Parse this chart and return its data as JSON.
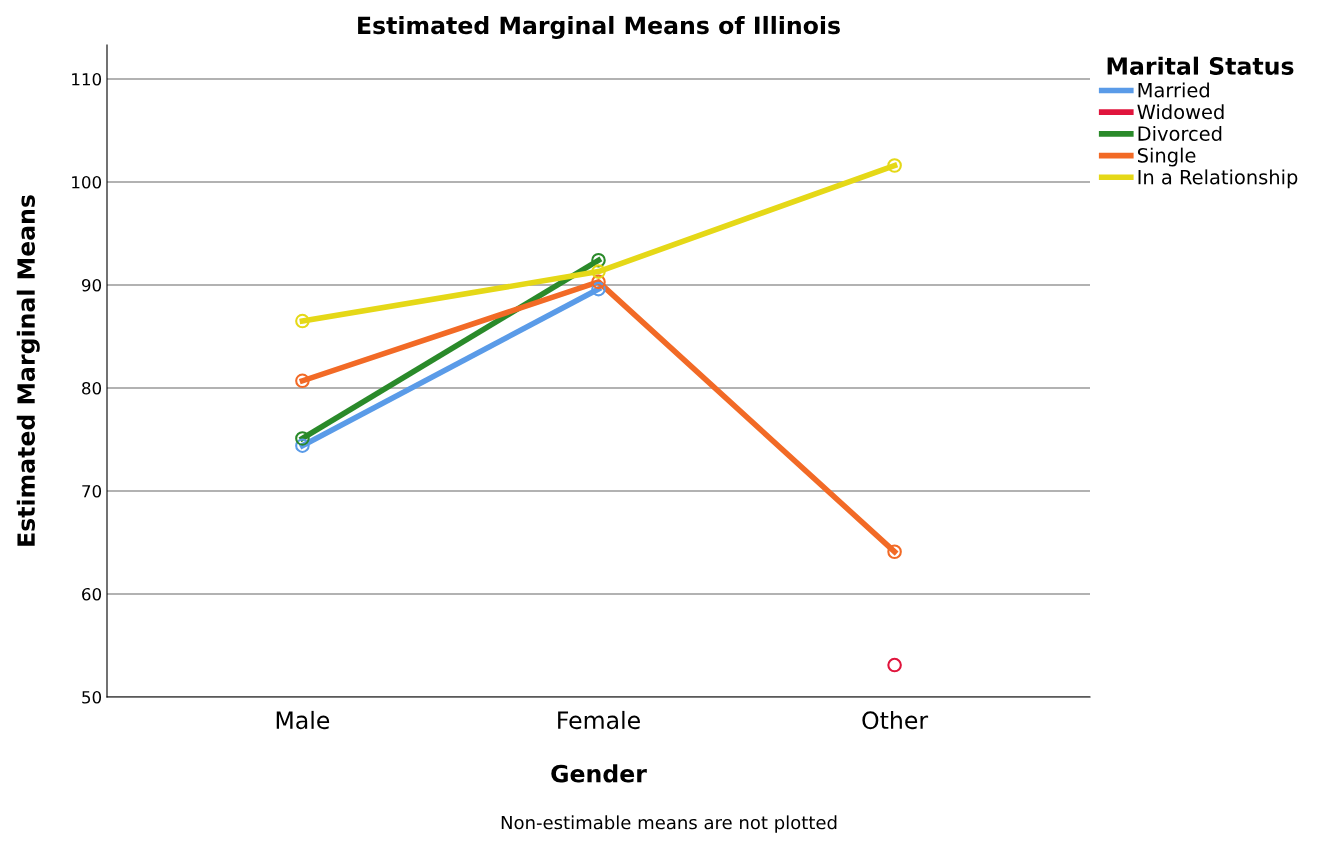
{
  "chart_data": {
    "type": "line",
    "title": "Estimated Marginal Means of Illinois",
    "xlabel": "Gender",
    "ylabel": "Estimated Marginal Means",
    "legend_title": "Marital Status",
    "categories": [
      "Male",
      "Female",
      "Other"
    ],
    "series": [
      {
        "name": "Married",
        "color": "#5a9be8",
        "values": [
          74.4,
          89.6,
          null
        ]
      },
      {
        "name": "Widowed",
        "color": "#e0143c",
        "values": [
          null,
          null,
          53.1
        ]
      },
      {
        "name": "Divorced",
        "color": "#2a8a2a",
        "values": [
          75.1,
          92.4,
          null
        ]
      },
      {
        "name": "Single",
        "color": "#f26a26",
        "values": [
          80.7,
          90.3,
          64.1
        ]
      },
      {
        "name": "In a Relationship",
        "color": "#e5d817",
        "values": [
          86.5,
          91.3,
          101.6
        ]
      }
    ],
    "ylim": [
      50,
      113.3
    ],
    "yticks": [
      50,
      60,
      70,
      80,
      90,
      100,
      110
    ],
    "grid": "y",
    "legend": "top right",
    "marker": "circle",
    "line_style": "solid",
    "annotations": [
      "Non-estimable means are not plotted"
    ]
  }
}
